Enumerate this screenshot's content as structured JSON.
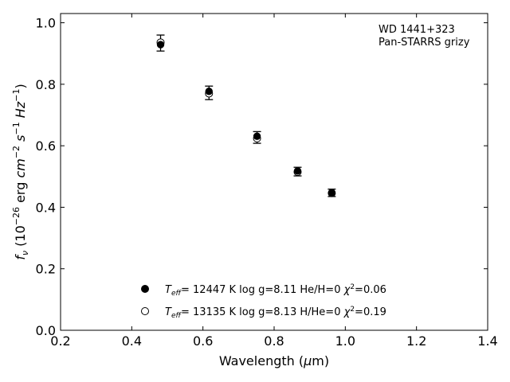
{
  "chart_data": {
    "type": "scatter",
    "xlabel": "Wavelength (μm)",
    "ylabel": "f_ν (10^-26 erg cm^-2 s^-1 Hz^-1)",
    "xlim": [
      0.2,
      1.4
    ],
    "ylim": [
      0.0,
      1.03
    ],
    "xticks": [
      "0.2",
      "0.4",
      "0.6",
      "0.8",
      "1.0",
      "1.2",
      "1.4"
    ],
    "yticks": [
      "0.0",
      "0.2",
      "0.4",
      "0.6",
      "0.8",
      "1.0"
    ],
    "grid": false,
    "annotation": [
      "WD 1441+323",
      "Pan-STARRS grizy"
    ],
    "observed": {
      "x": [
        0.481,
        0.617,
        0.752,
        0.866,
        0.962
      ],
      "y": [
        0.934,
        0.772,
        0.627,
        0.516,
        0.447
      ],
      "err": [
        0.026,
        0.022,
        0.019,
        0.014,
        0.012
      ]
    },
    "series": [
      {
        "marker": "filled",
        "teff": "12447",
        "logg": "8.11",
        "comp_label": "He/H=0",
        "chi2": "0.06",
        "x": [
          0.481,
          0.617,
          0.752,
          0.866,
          0.962
        ],
        "y": [
          0.929,
          0.777,
          0.631,
          0.518,
          0.448
        ]
      },
      {
        "marker": "open",
        "teff": "13135",
        "logg": "8.13",
        "comp_label": "H/He=0",
        "chi2": "0.19",
        "x": [
          0.481,
          0.617,
          0.752,
          0.866,
          0.962
        ],
        "y": [
          0.936,
          0.77,
          0.624,
          0.515,
          0.446
        ]
      }
    ]
  }
}
